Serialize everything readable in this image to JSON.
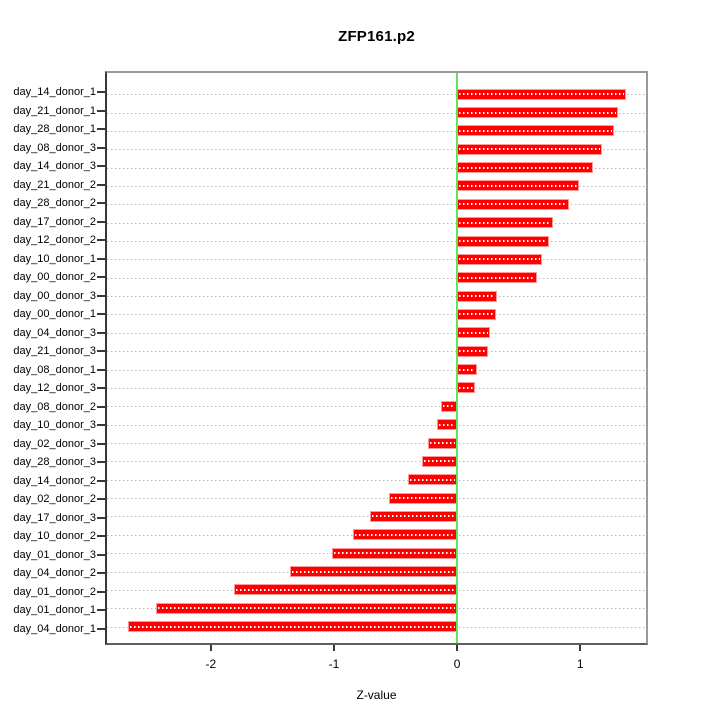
{
  "chart_data": {
    "type": "bar",
    "orientation": "horizontal",
    "title": "ZFP161.p2",
    "xlabel": "Z-value",
    "xlim": [
      -2.86,
      1.55
    ],
    "xticks": [
      -2,
      -1,
      0,
      1
    ],
    "grid": "dotted-horizontal-per-category",
    "legend": "none",
    "categories": [
      "day_14_donor_1",
      "day_21_donor_1",
      "day_28_donor_1",
      "day_08_donor_3",
      "day_14_donor_3",
      "day_21_donor_2",
      "day_28_donor_2",
      "day_17_donor_2",
      "day_12_donor_2",
      "day_10_donor_1",
      "day_00_donor_2",
      "day_00_donor_3",
      "day_00_donor_1",
      "day_04_donor_3",
      "day_21_donor_3",
      "day_08_donor_1",
      "day_12_donor_3",
      "day_08_donor_2",
      "day_10_donor_3",
      "day_02_donor_3",
      "day_28_donor_3",
      "day_14_donor_2",
      "day_02_donor_2",
      "day_17_donor_3",
      "day_10_donor_2",
      "day_01_donor_3",
      "day_04_donor_2",
      "day_01_donor_2",
      "day_01_donor_1",
      "day_04_donor_1"
    ],
    "values": [
      1.39,
      1.32,
      1.29,
      1.19,
      1.12,
      1.0,
      0.92,
      0.79,
      0.76,
      0.7,
      0.66,
      0.33,
      0.32,
      0.27,
      0.26,
      0.17,
      0.15,
      -0.13,
      -0.16,
      -0.23,
      -0.28,
      -0.4,
      -0.55,
      -0.71,
      -0.85,
      -1.02,
      -1.36,
      -1.82,
      -2.46,
      -2.69
    ]
  },
  "colors": {
    "bar_fill": "#ff0000",
    "bar_edge": "#ff9999",
    "zero_line": "#5ce65c",
    "gridline": "#b9b9b9",
    "box": "#9a9a9a",
    "tick": "#383838",
    "text": "#000000",
    "background": "#ffffff"
  }
}
